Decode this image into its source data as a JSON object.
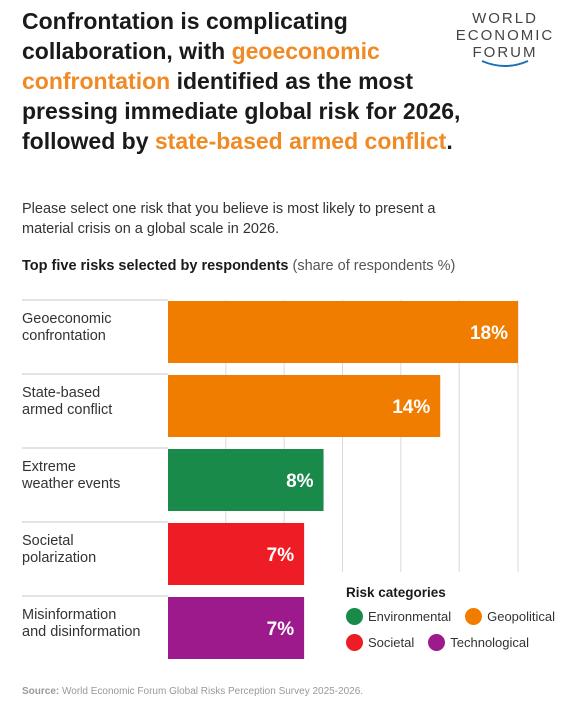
{
  "headline": {
    "part1": "Confrontation is complicating collaboration, with ",
    "hl1": "geoeconomic confrontation",
    "part2": " identified as the most pressing immediate global risk for 2026, followed by ",
    "hl2": "state-based armed conflict",
    "part3": "."
  },
  "logo": {
    "line1": "WORLD",
    "line2": "ECONOMIC",
    "line3": "FORUM"
  },
  "question": "Please select one risk that you believe is most likely to present a material crisis on a global scale in 2026.",
  "chart_title": {
    "bold": "Top five risks selected by respondents",
    "sub": " (share of respondents %)"
  },
  "chart_data": {
    "type": "bar",
    "orientation": "horizontal",
    "categories": [
      [
        "Geoeconomic",
        "confrontation"
      ],
      [
        "State-based",
        "armed conflict"
      ],
      [
        "Extreme",
        "weather events"
      ],
      [
        "Societal",
        "polarization"
      ],
      [
        "Misinformation",
        "and disinformation"
      ]
    ],
    "values": [
      18,
      14,
      8,
      7,
      7
    ],
    "value_labels": [
      "18%",
      "14%",
      "8%",
      "7%",
      "7%"
    ],
    "bar_categories": [
      "Geopolitical",
      "Geopolitical",
      "Environmental",
      "Societal",
      "Technological"
    ],
    "xlim": [
      0,
      18
    ],
    "grid": true
  },
  "legend": {
    "title": "Risk categories",
    "items": [
      {
        "label": "Environmental",
        "color": "#1a8a4a"
      },
      {
        "label": "Geopolitical",
        "color": "#f07c00"
      },
      {
        "label": "Societal",
        "color": "#ee1c25"
      },
      {
        "label": "Technological",
        "color": "#9c1a8c"
      }
    ]
  },
  "colors": {
    "Environmental": "#1a8a4a",
    "Geopolitical": "#f07c00",
    "Societal": "#ee1c25",
    "Technological": "#9c1a8c",
    "highlight": "#f08a24"
  },
  "source": {
    "label": "Source:",
    "text": " World Economic Forum Global Risks Perception Survey 2025-2026."
  }
}
